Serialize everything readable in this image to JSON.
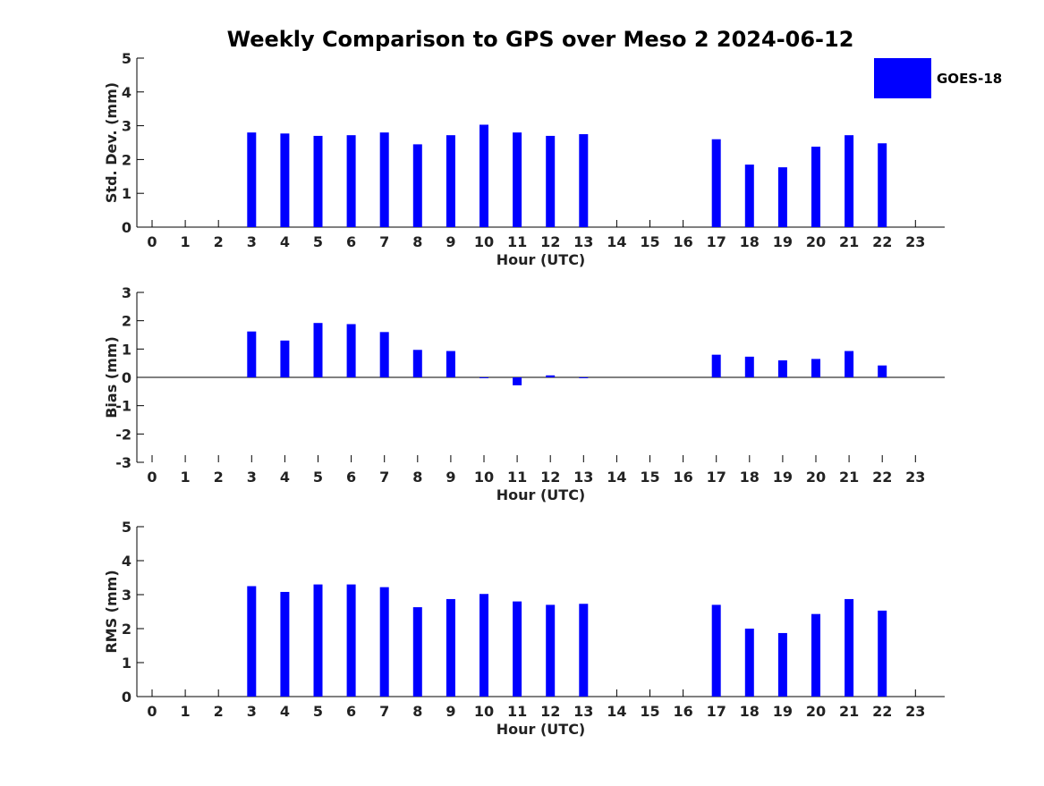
{
  "figure": {
    "title": "Weekly Comparison to GPS over Meso 2 2024-06-12",
    "bar_color": "#0000ff"
  },
  "legend": {
    "label": "GOES-18",
    "color": "#0000ff",
    "placement": "top-right"
  },
  "chart_data": [
    {
      "type": "bar",
      "xlabel": "Hour (UTC)",
      "ylabel": "Std. Dev. (mm)",
      "ylim": [
        0,
        5
      ],
      "yticks": [
        0,
        1,
        2,
        3,
        4,
        5
      ],
      "categories": [
        "0",
        "1",
        "2",
        "3",
        "4",
        "5",
        "6",
        "7",
        "8",
        "9",
        "10",
        "11",
        "12",
        "13",
        "14",
        "15",
        "16",
        "17",
        "18",
        "19",
        "20",
        "21",
        "22",
        "23"
      ],
      "series": [
        {
          "name": "GOES-18",
          "values": [
            null,
            null,
            null,
            2.8,
            2.77,
            2.7,
            2.72,
            2.8,
            2.45,
            2.72,
            3.03,
            2.8,
            2.7,
            2.75,
            null,
            null,
            null,
            2.6,
            1.85,
            1.77,
            2.38,
            2.72,
            2.48,
            null
          ]
        }
      ]
    },
    {
      "type": "bar",
      "xlabel": "Hour (UTC)",
      "ylabel": "Bias (mm)",
      "ylim": [
        -3,
        3
      ],
      "yticks": [
        -3,
        -2,
        -1,
        0,
        1,
        2,
        3
      ],
      "categories": [
        "0",
        "1",
        "2",
        "3",
        "4",
        "5",
        "6",
        "7",
        "8",
        "9",
        "10",
        "11",
        "12",
        "13",
        "14",
        "15",
        "16",
        "17",
        "18",
        "19",
        "20",
        "21",
        "22",
        "23"
      ],
      "series": [
        {
          "name": "GOES-18",
          "values": [
            null,
            null,
            null,
            1.62,
            1.3,
            1.92,
            1.88,
            1.6,
            0.97,
            0.93,
            -0.03,
            -0.28,
            0.07,
            -0.03,
            null,
            null,
            null,
            0.8,
            0.73,
            0.6,
            0.65,
            0.93,
            0.42,
            null
          ]
        }
      ]
    },
    {
      "type": "bar",
      "xlabel": "Hour (UTC)",
      "ylabel": "RMS (mm)",
      "ylim": [
        0,
        5
      ],
      "yticks": [
        0,
        1,
        2,
        3,
        4,
        5
      ],
      "categories": [
        "0",
        "1",
        "2",
        "3",
        "4",
        "5",
        "6",
        "7",
        "8",
        "9",
        "10",
        "11",
        "12",
        "13",
        "14",
        "15",
        "16",
        "17",
        "18",
        "19",
        "20",
        "21",
        "22",
        "23"
      ],
      "series": [
        {
          "name": "GOES-18",
          "values": [
            null,
            null,
            null,
            3.25,
            3.08,
            3.3,
            3.3,
            3.22,
            2.63,
            2.87,
            3.02,
            2.8,
            2.7,
            2.73,
            null,
            null,
            null,
            2.7,
            2.0,
            1.87,
            2.43,
            2.87,
            2.53,
            null
          ]
        }
      ]
    }
  ]
}
